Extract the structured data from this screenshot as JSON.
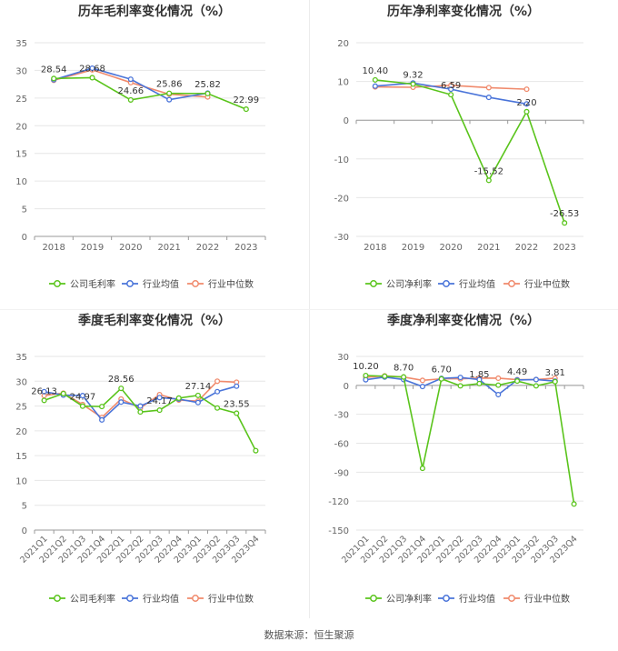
{
  "source": "数据来源：恒生聚源",
  "legend": {
    "company_gross": "公司毛利率",
    "company_net": "公司净利率",
    "industry_avg": "行业均值",
    "industry_median": "行业中位数"
  },
  "colors": {
    "company": "#5ac41c",
    "industry_avg": "#4a74d9",
    "industry_median": "#f08a6c",
    "grid": "#e6e6e6",
    "axis_text": "#666666",
    "title": "#333333"
  },
  "chart_data": [
    {
      "type": "line",
      "title": "历年毛利率变化情况（%）",
      "categories": [
        "2018",
        "2019",
        "2020",
        "2021",
        "2022",
        "2023"
      ],
      "ylim": [
        0,
        35
      ],
      "yticks": [
        0,
        5,
        10,
        15,
        20,
        25,
        30,
        35
      ],
      "series": [
        {
          "name": "公司毛利率",
          "values": [
            28.54,
            28.68,
            24.66,
            25.86,
            25.82,
            22.99
          ]
        },
        {
          "name": "行业均值",
          "values": [
            28.3,
            30.4,
            28.4,
            24.7,
            25.9,
            null
          ]
        },
        {
          "name": "行业中位数",
          "values": [
            28.2,
            30.1,
            27.8,
            25.7,
            25.2,
            null
          ]
        }
      ],
      "data_labels": [
        {
          "text": "28.54",
          "i": 0,
          "v": 28.54
        },
        {
          "text": "28.68",
          "i": 1,
          "v": 28.68
        },
        {
          "text": "24.66",
          "i": 2,
          "v": 24.66
        },
        {
          "text": "25.86",
          "i": 3,
          "v": 25.86
        },
        {
          "text": "25.82",
          "i": 4,
          "v": 25.82
        },
        {
          "text": "22.99",
          "i": 5,
          "v": 22.99
        }
      ]
    },
    {
      "type": "line",
      "title": "历年净利率变化情况（%）",
      "categories": [
        "2018",
        "2019",
        "2020",
        "2021",
        "2022",
        "2023"
      ],
      "ylim": [
        -30,
        20
      ],
      "yticks": [
        -30,
        -20,
        -10,
        0,
        10,
        20
      ],
      "series": [
        {
          "name": "公司净利率",
          "values": [
            10.4,
            9.32,
            6.59,
            -15.52,
            2.2,
            -26.53
          ]
        },
        {
          "name": "行业均值",
          "values": [
            8.8,
            9.6,
            8.0,
            5.9,
            4.2,
            null
          ]
        },
        {
          "name": "行业中位数",
          "values": [
            8.6,
            8.5,
            9.0,
            8.4,
            8.0,
            null
          ]
        }
      ],
      "data_labels": [
        {
          "text": "10.40",
          "i": 0,
          "v": 10.4
        },
        {
          "text": "9.32",
          "i": 1,
          "v": 9.32
        },
        {
          "text": "6.59",
          "i": 2,
          "v": 6.59
        },
        {
          "text": "-15.52",
          "i": 3,
          "v": -15.52
        },
        {
          "text": "2.20",
          "i": 4,
          "v": 2.2
        },
        {
          "text": "-26.53",
          "i": 5,
          "v": -26.53
        }
      ]
    },
    {
      "type": "line",
      "title": "季度毛利率变化情况（%）",
      "categories": [
        "2021Q1",
        "2021Q2",
        "2021Q3",
        "2021Q4",
        "2022Q1",
        "2022Q2",
        "2022Q3",
        "2022Q4",
        "2023Q1",
        "2023Q2",
        "2023Q3",
        "2023Q4"
      ],
      "ylim": [
        0,
        35
      ],
      "yticks": [
        0,
        5,
        10,
        15,
        20,
        25,
        30,
        35
      ],
      "series": [
        {
          "name": "公司毛利率",
          "values": [
            26.13,
            27.5,
            24.97,
            24.9,
            28.56,
            23.8,
            24.17,
            26.6,
            27.14,
            24.6,
            23.55,
            16.0
          ]
        },
        {
          "name": "行业均值",
          "values": [
            27.9,
            27.2,
            27.1,
            22.2,
            25.8,
            25.0,
            26.7,
            26.4,
            25.7,
            27.9,
            29.0,
            null
          ]
        },
        {
          "name": "行业中位数",
          "values": [
            27.1,
            27.6,
            25.3,
            22.7,
            26.4,
            24.6,
            27.3,
            26.2,
            26.0,
            30.0,
            29.8,
            null
          ]
        }
      ],
      "data_labels": [
        {
          "text": "26.13",
          "i": 0,
          "v": 26.13
        },
        {
          "text": "24.97",
          "i": 2,
          "v": 24.97
        },
        {
          "text": "28.56",
          "i": 4,
          "v": 28.56
        },
        {
          "text": "24.17",
          "i": 6,
          "v": 24.17
        },
        {
          "text": "27.14",
          "i": 8,
          "v": 27.14
        },
        {
          "text": "23.55",
          "i": 10,
          "v": 23.55
        }
      ]
    },
    {
      "type": "line",
      "title": "季度净利率变化情况（%）",
      "categories": [
        "2021Q1",
        "2021Q2",
        "2021Q3",
        "2021Q4",
        "2022Q1",
        "2022Q2",
        "2022Q3",
        "2022Q4",
        "2023Q1",
        "2023Q2",
        "2023Q3",
        "2023Q4"
      ],
      "ylim": [
        -150,
        30
      ],
      "yticks": [
        -150,
        -120,
        -90,
        -60,
        -30,
        0,
        30
      ],
      "series": [
        {
          "name": "公司净利率",
          "values": [
            10.2,
            9.5,
            8.7,
            -86.0,
            6.7,
            -0.5,
            1.85,
            0.2,
            4.49,
            -0.5,
            3.81,
            -123.0
          ]
        },
        {
          "name": "行业均值",
          "values": [
            5.8,
            8.6,
            6.0,
            -1.2,
            7.2,
            8.2,
            6.0,
            -9.6,
            5.6,
            6.0,
            4.4,
            null
          ]
        },
        {
          "name": "行业中位数",
          "values": [
            8.4,
            9.8,
            8.6,
            5.2,
            6.8,
            6.8,
            7.6,
            7.4,
            5.9,
            6.0,
            7.4,
            null
          ]
        }
      ],
      "data_labels": [
        {
          "text": "10.20",
          "i": 0,
          "v": 10.2
        },
        {
          "text": "8.70",
          "i": 2,
          "v": 8.7
        },
        {
          "text": "6.70",
          "i": 4,
          "v": 6.7
        },
        {
          "text": "1.85",
          "i": 6,
          "v": 1.85
        },
        {
          "text": "4.49",
          "i": 8,
          "v": 4.49
        },
        {
          "text": "3.81",
          "i": 10,
          "v": 3.81
        }
      ]
    }
  ]
}
